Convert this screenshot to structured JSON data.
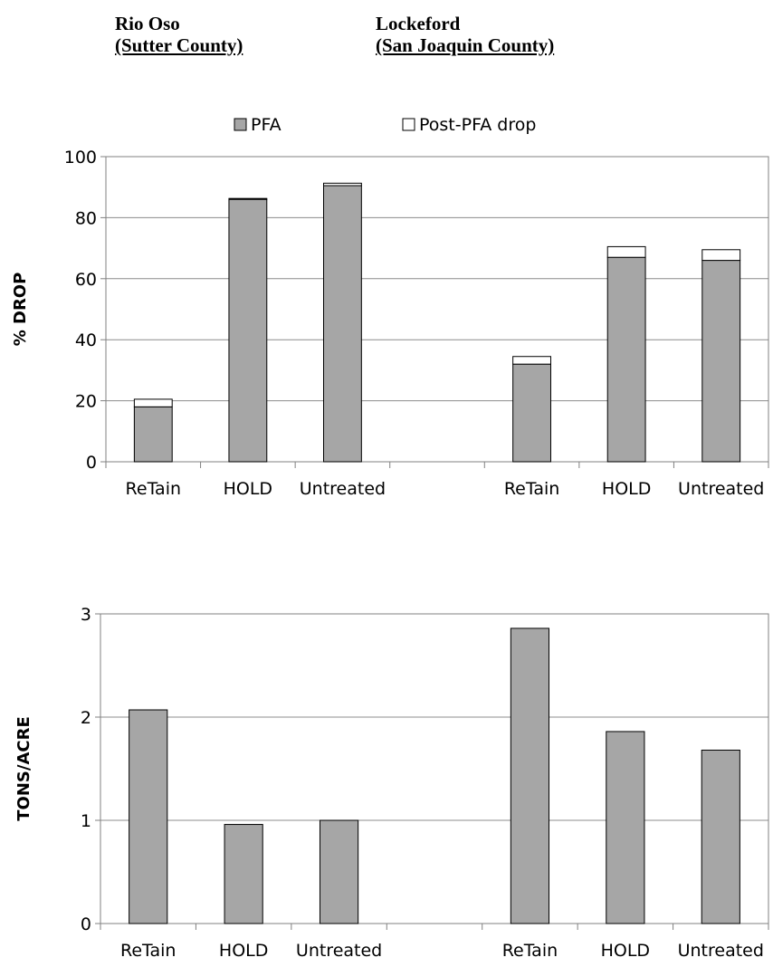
{
  "locations": [
    {
      "name": "Rio Oso",
      "county": "(Sutter County)"
    },
    {
      "name": "Lockeford",
      "county": "(San Joaquin County)"
    }
  ],
  "chart_data": [
    {
      "type": "bar",
      "stacked": true,
      "categories": [
        "ReTain",
        "HOLD",
        "Untreated",
        "",
        "ReTain",
        "HOLD",
        "Untreated"
      ],
      "series": [
        {
          "name": "PFA",
          "values": [
            18,
            86,
            90.5,
            null,
            32,
            67,
            66
          ],
          "color": "#a6a6a6"
        },
        {
          "name": "Post-PFA drop",
          "values": [
            2.5,
            0.3,
            0.8,
            null,
            2.5,
            3.5,
            3.5
          ],
          "color": "#ffffff"
        }
      ],
      "ylabel": "% DROP",
      "ylim": [
        0,
        100
      ],
      "yticks": [
        0,
        20,
        40,
        60,
        80,
        100
      ],
      "grid": true,
      "legend": "top"
    },
    {
      "type": "bar",
      "categories": [
        "ReTain",
        "HOLD",
        "Untreated",
        "",
        "ReTain",
        "HOLD",
        "Untreated"
      ],
      "series": [
        {
          "values": [
            2.07,
            0.96,
            1.0,
            null,
            2.86,
            1.86,
            1.68
          ],
          "color": "#a6a6a6"
        }
      ],
      "ylabel": "TONS/ACRE",
      "ylim": [
        0,
        3
      ],
      "yticks": [
        0,
        1,
        2,
        3
      ],
      "grid": true
    }
  ]
}
